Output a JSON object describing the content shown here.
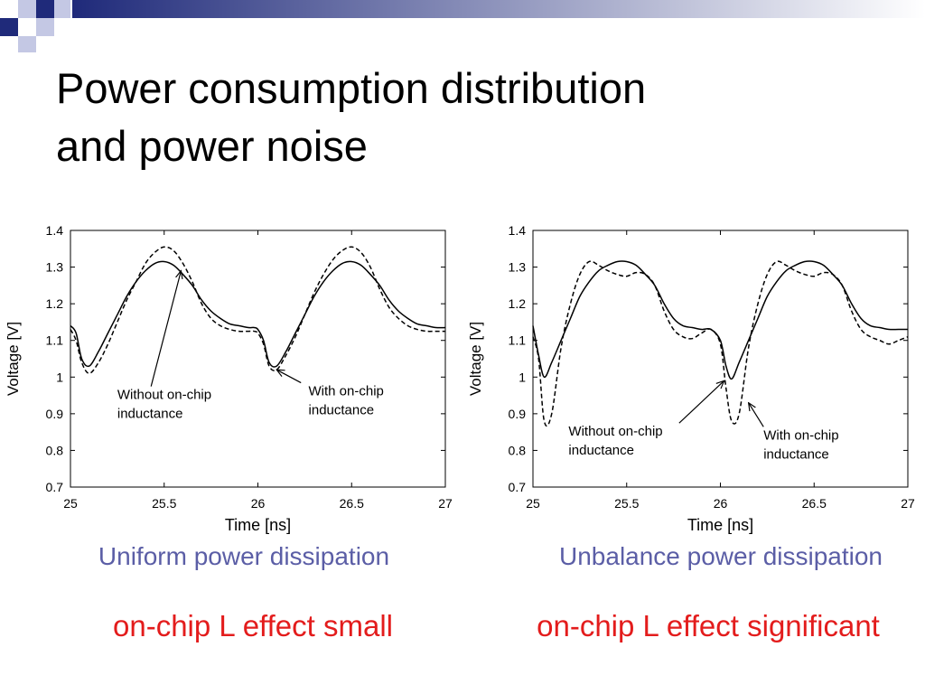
{
  "slide": {
    "title_line1": "Power consumption distribution",
    "title_line2": "and power noise",
    "caption_left": "Uniform power dissipation",
    "caption_right": "Unbalance power dissipation",
    "effect_left": "on-chip L effect small",
    "effect_right": "on-chip L effect significant",
    "colors": {
      "deco_navy": "#1f2a7a",
      "deco_light": "#c4c8e4",
      "caption": "#5b5ea6",
      "effect": "#e31c1c"
    }
  },
  "chart_data": [
    {
      "type": "line",
      "xlabel": "Time [ns]",
      "ylabel": "Voltage [V]",
      "xlim": [
        25,
        27
      ],
      "ylim": [
        0.7,
        1.4
      ],
      "xticks": [
        "25",
        "25.5",
        "26",
        "26.5",
        "27"
      ],
      "yticks": [
        "0.7",
        "0.8",
        "0.9",
        "1",
        "1.1",
        "1.2",
        "1.3",
        "1.4"
      ],
      "grid": false,
      "series": [
        {
          "name": "Without on-chip inductance",
          "style": "solid",
          "x": [
            25,
            25.03,
            25.06,
            25.1,
            25.15,
            25.2,
            25.25,
            25.3,
            25.35,
            25.4,
            25.45,
            25.5,
            25.55,
            25.6,
            25.65,
            25.7,
            25.75,
            25.8,
            25.85,
            25.9,
            25.95,
            25.98,
            26.0,
            26.03,
            26.06,
            26.1,
            26.15,
            26.2,
            26.25,
            26.3,
            26.35,
            26.4,
            26.45,
            26.5,
            26.55,
            26.6,
            26.65,
            26.7,
            26.75,
            26.8,
            26.85,
            26.9,
            26.95,
            27.0
          ],
          "y": [
            1.14,
            1.12,
            1.05,
            1.03,
            1.07,
            1.12,
            1.17,
            1.22,
            1.26,
            1.29,
            1.31,
            1.315,
            1.305,
            1.28,
            1.25,
            1.21,
            1.18,
            1.16,
            1.145,
            1.14,
            1.135,
            1.135,
            1.13,
            1.1,
            1.04,
            1.03,
            1.07,
            1.12,
            1.17,
            1.22,
            1.26,
            1.29,
            1.31,
            1.315,
            1.305,
            1.28,
            1.25,
            1.21,
            1.18,
            1.16,
            1.145,
            1.14,
            1.135,
            1.135
          ]
        },
        {
          "name": "With on-chip inductance",
          "style": "dashed",
          "x": [
            25,
            25.03,
            25.06,
            25.1,
            25.15,
            25.2,
            25.25,
            25.3,
            25.35,
            25.4,
            25.45,
            25.5,
            25.55,
            25.6,
            25.65,
            25.7,
            25.75,
            25.8,
            25.85,
            25.9,
            25.95,
            25.98,
            26.0,
            26.03,
            26.06,
            26.1,
            26.15,
            26.2,
            26.25,
            26.3,
            26.35,
            26.4,
            26.45,
            26.5,
            26.55,
            26.6,
            26.65,
            26.7,
            26.75,
            26.8,
            26.85,
            26.9,
            26.95,
            27.0
          ],
          "y": [
            1.13,
            1.1,
            1.04,
            1.01,
            1.04,
            1.09,
            1.15,
            1.21,
            1.26,
            1.31,
            1.34,
            1.355,
            1.345,
            1.31,
            1.26,
            1.2,
            1.16,
            1.14,
            1.13,
            1.125,
            1.125,
            1.125,
            1.12,
            1.09,
            1.03,
            1.02,
            1.06,
            1.11,
            1.17,
            1.23,
            1.28,
            1.32,
            1.345,
            1.355,
            1.34,
            1.3,
            1.24,
            1.19,
            1.16,
            1.14,
            1.13,
            1.125,
            1.125,
            1.125
          ]
        }
      ],
      "annotations": [
        {
          "text_lines": [
            "Without on-chip",
            "inductance"
          ],
          "text_x": 25.25,
          "text_y": 0.94,
          "arrow_from": [
            25.43,
            0.94
          ],
          "arrow_to": [
            25.59,
            1.29
          ]
        },
        {
          "text_lines": [
            "With on-chip",
            "inductance"
          ],
          "text_x": 26.27,
          "text_y": 0.95,
          "arrow_from": [
            26.23,
            0.95
          ],
          "arrow_to": [
            26.1,
            1.02
          ]
        }
      ]
    },
    {
      "type": "line",
      "xlabel": "Time [ns]",
      "ylabel": "Voltage [V]",
      "xlim": [
        25,
        27
      ],
      "ylim": [
        0.7,
        1.4
      ],
      "xticks": [
        "25",
        "25.5",
        "26",
        "26.5",
        "27"
      ],
      "yticks": [
        "0.7",
        "0.8",
        "0.9",
        "1",
        "1.1",
        "1.2",
        "1.3",
        "1.4"
      ],
      "grid": false,
      "series": [
        {
          "name": "Without on-chip inductance",
          "style": "solid",
          "x": [
            25,
            25.03,
            25.06,
            25.1,
            25.15,
            25.2,
            25.25,
            25.3,
            25.35,
            25.4,
            25.45,
            25.5,
            25.55,
            25.6,
            25.65,
            25.7,
            25.75,
            25.8,
            25.85,
            25.9,
            25.95,
            26.0,
            26.03,
            26.06,
            26.1,
            26.15,
            26.2,
            26.25,
            26.3,
            26.35,
            26.4,
            26.45,
            26.5,
            26.55,
            26.6,
            26.65,
            26.7,
            26.75,
            26.8,
            26.85,
            26.9,
            26.95,
            27.0
          ],
          "y": [
            1.14,
            1.06,
            1.0,
            1.04,
            1.1,
            1.16,
            1.22,
            1.26,
            1.29,
            1.305,
            1.315,
            1.315,
            1.305,
            1.28,
            1.25,
            1.2,
            1.16,
            1.14,
            1.135,
            1.13,
            1.13,
            1.1,
            1.03,
            0.995,
            1.04,
            1.1,
            1.16,
            1.22,
            1.26,
            1.29,
            1.305,
            1.315,
            1.315,
            1.305,
            1.28,
            1.25,
            1.2,
            1.16,
            1.14,
            1.135,
            1.13,
            1.13,
            1.13
          ]
        },
        {
          "name": "With on-chip inductance",
          "style": "dashed",
          "x": [
            25,
            25.03,
            25.06,
            25.1,
            25.15,
            25.2,
            25.25,
            25.3,
            25.35,
            25.4,
            25.45,
            25.5,
            25.55,
            25.6,
            25.65,
            25.7,
            25.75,
            25.8,
            25.85,
            25.9,
            25.95,
            26.0,
            26.03,
            26.06,
            26.1,
            26.15,
            26.2,
            26.25,
            26.3,
            26.35,
            26.4,
            26.45,
            26.5,
            26.55,
            26.6,
            26.65,
            26.7,
            26.75,
            26.8,
            26.85,
            26.9,
            26.95,
            27.0
          ],
          "y": [
            1.11,
            1.05,
            0.88,
            0.9,
            1.08,
            1.2,
            1.28,
            1.315,
            1.305,
            1.29,
            1.28,
            1.275,
            1.285,
            1.28,
            1.25,
            1.18,
            1.13,
            1.11,
            1.105,
            1.12,
            1.13,
            1.09,
            0.97,
            0.88,
            0.9,
            1.08,
            1.2,
            1.28,
            1.315,
            1.305,
            1.29,
            1.28,
            1.275,
            1.285,
            1.28,
            1.25,
            1.18,
            1.13,
            1.11,
            1.1,
            1.09,
            1.1,
            1.11
          ]
        }
      ],
      "annotations": [
        {
          "text_lines": [
            "Without on-chip",
            "inductance"
          ],
          "text_x": 25.19,
          "text_y": 0.84,
          "arrow_from": [
            25.78,
            0.84
          ],
          "arrow_to": [
            26.02,
            0.99
          ]
        },
        {
          "text_lines": [
            "With on-chip",
            "inductance"
          ],
          "text_x": 26.23,
          "text_y": 0.83,
          "arrow_from": [
            26.23,
            0.83
          ],
          "arrow_to": [
            26.15,
            0.93
          ]
        }
      ]
    }
  ]
}
